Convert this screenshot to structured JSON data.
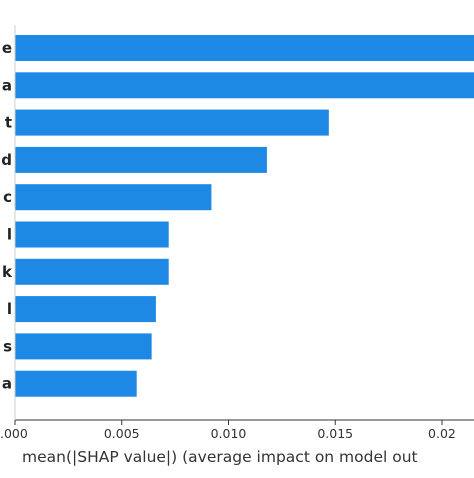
{
  "chart_data": {
    "type": "bar",
    "orientation": "horizontal",
    "categories": [
      "e",
      "a",
      "t",
      "d",
      "c",
      "l",
      "k",
      "l",
      "s",
      "a"
    ],
    "values": [
      0.0215,
      0.0215,
      0.0147,
      0.0118,
      0.0092,
      0.0072,
      0.0072,
      0.0066,
      0.0064,
      0.0057
    ],
    "xlabel": "mean(|SHAP value|) (average impact on model out",
    "ylabel": "",
    "title": "",
    "xlim": [
      0.0,
      0.0215
    ],
    "xticks": [
      0.0,
      0.005,
      0.01,
      0.015,
      0.02
    ],
    "xtick_labels": [
      ".000",
      "0.005",
      "0.010",
      "0.015",
      "0.02"
    ],
    "bar_color": "#1e88e5",
    "grid": false,
    "legend": "none"
  }
}
